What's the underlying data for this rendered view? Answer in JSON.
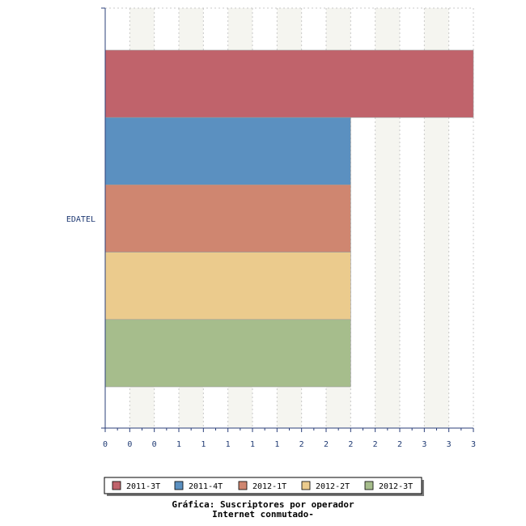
{
  "chart_data": {
    "type": "bar",
    "orientation": "horizontal",
    "categories": [
      "EDATEL"
    ],
    "series": [
      {
        "name": "2011-3T",
        "color": "#c0636b",
        "values": [
          3
        ]
      },
      {
        "name": "2011-4T",
        "color": "#5b90c0",
        "values": [
          2
        ]
      },
      {
        "name": "2012-1T",
        "color": "#cf8670",
        "values": [
          2
        ]
      },
      {
        "name": "2012-2T",
        "color": "#ebcb8d",
        "values": [
          2
        ]
      },
      {
        "name": "2012-3T",
        "color": "#a6bd8c",
        "values": [
          2
        ]
      }
    ],
    "x_tick_labels": [
      "0",
      "0",
      "0",
      "1",
      "1",
      "1",
      "1",
      "1",
      "2",
      "2",
      "2",
      "2",
      "2",
      "3",
      "3",
      "3"
    ],
    "xlim": [
      0,
      3
    ],
    "grid": true,
    "legend_position": "bottom",
    "title_lines": [
      "Gráfica: Suscriptores por operador",
      "Internet conmutado-"
    ]
  }
}
